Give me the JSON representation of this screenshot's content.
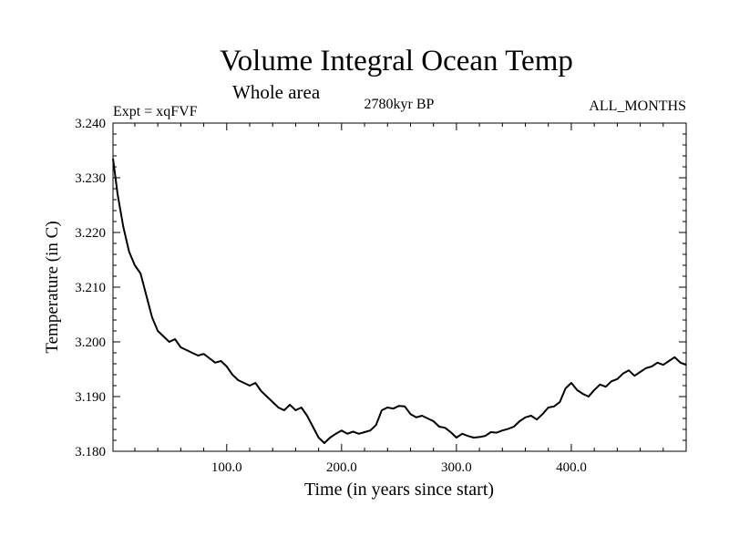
{
  "chart_data": {
    "type": "line",
    "title": "Volume Integral Ocean Temp",
    "subtitle": "Whole area",
    "experiment_label": "Expt = xqFVF",
    "period_label": "2780kyr BP",
    "months_label": "ALL_MONTHS",
    "xlabel": "Time (in years since start)",
    "ylabel": "Temperature (in C)",
    "xlim": [
      1,
      500
    ],
    "ylim": [
      3.18,
      3.24
    ],
    "x_ticks": [
      100,
      200,
      300,
      400
    ],
    "x_tick_labels": [
      "100.0",
      "200.0",
      "300.0",
      "400.0"
    ],
    "y_ticks": [
      3.18,
      3.19,
      3.2,
      3.21,
      3.22,
      3.23,
      3.24
    ],
    "y_tick_labels": [
      "3.180",
      "3.190",
      "3.200",
      "3.210",
      "3.220",
      "3.230",
      "3.240"
    ],
    "series": [
      {
        "name": "Volume integral ocean temperature",
        "color": "#000000",
        "x": [
          1,
          5,
          10,
          15,
          20,
          25,
          30,
          35,
          40,
          45,
          50,
          55,
          60,
          65,
          70,
          75,
          80,
          85,
          90,
          95,
          100,
          105,
          110,
          115,
          120,
          125,
          130,
          135,
          140,
          145,
          150,
          155,
          160,
          165,
          170,
          175,
          180,
          185,
          190,
          195,
          200,
          205,
          210,
          215,
          220,
          225,
          230,
          235,
          240,
          245,
          250,
          255,
          260,
          265,
          270,
          275,
          280,
          285,
          290,
          295,
          300,
          305,
          310,
          315,
          320,
          325,
          330,
          335,
          340,
          345,
          350,
          355,
          360,
          365,
          370,
          375,
          380,
          385,
          390,
          395,
          400,
          405,
          410,
          415,
          420,
          425,
          430,
          435,
          440,
          445,
          450,
          455,
          460,
          465,
          470,
          475,
          480,
          485,
          490,
          495,
          500
        ],
        "values": [
          3.2335,
          3.227,
          3.221,
          3.2165,
          3.214,
          3.2125,
          3.2085,
          3.2045,
          3.202,
          3.201,
          3.2,
          3.2005,
          3.199,
          3.1985,
          3.198,
          3.1975,
          3.1978,
          3.197,
          3.1962,
          3.1965,
          3.1955,
          3.194,
          3.193,
          3.1925,
          3.192,
          3.1925,
          3.191,
          3.19,
          3.189,
          3.188,
          3.1875,
          3.1885,
          3.1875,
          3.188,
          3.1865,
          3.1845,
          3.1825,
          3.1815,
          3.1825,
          3.1832,
          3.1838,
          3.1832,
          3.1836,
          3.1832,
          3.1835,
          3.1838,
          3.1848,
          3.1875,
          3.188,
          3.1878,
          3.1883,
          3.1882,
          3.1868,
          3.1862,
          3.1865,
          3.186,
          3.1855,
          3.1845,
          3.1843,
          3.1835,
          3.1825,
          3.1832,
          3.1828,
          3.1825,
          3.1826,
          3.1828,
          3.1835,
          3.1834,
          3.1838,
          3.1841,
          3.1845,
          3.1855,
          3.1862,
          3.1865,
          3.1858,
          3.1868,
          3.188,
          3.1882,
          3.189,
          3.1915,
          3.1925,
          3.1912,
          3.1905,
          3.19,
          3.1912,
          3.1922,
          3.1918,
          3.1928,
          3.1932,
          3.1942,
          3.1948,
          3.1938,
          3.1945,
          3.1952,
          3.1955,
          3.1962,
          3.1958,
          3.1965,
          3.1972,
          3.1962,
          3.1958
        ]
      }
    ]
  }
}
